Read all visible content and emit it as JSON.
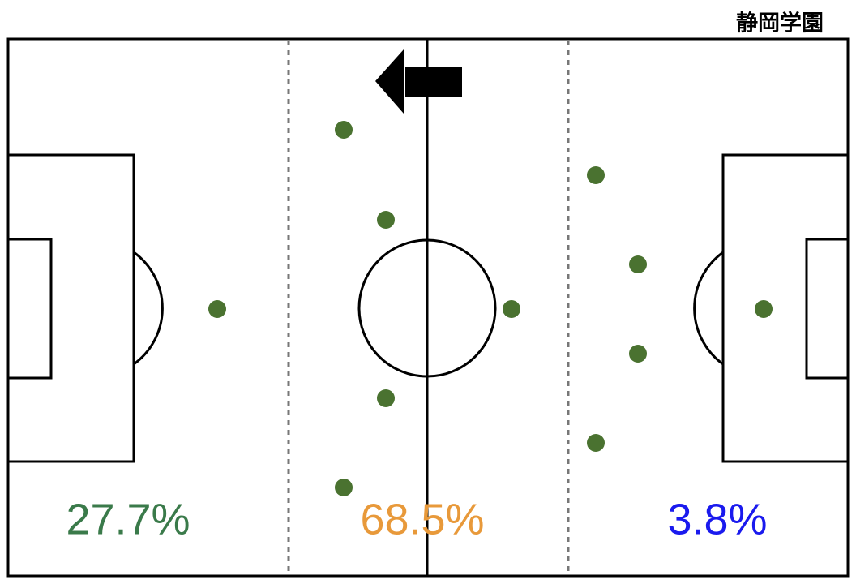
{
  "header": {
    "title": "静岡学園"
  },
  "zones": [
    {
      "label": "27.7%"
    },
    {
      "label": "68.5%"
    },
    {
      "label": "3.8%"
    }
  ]
}
